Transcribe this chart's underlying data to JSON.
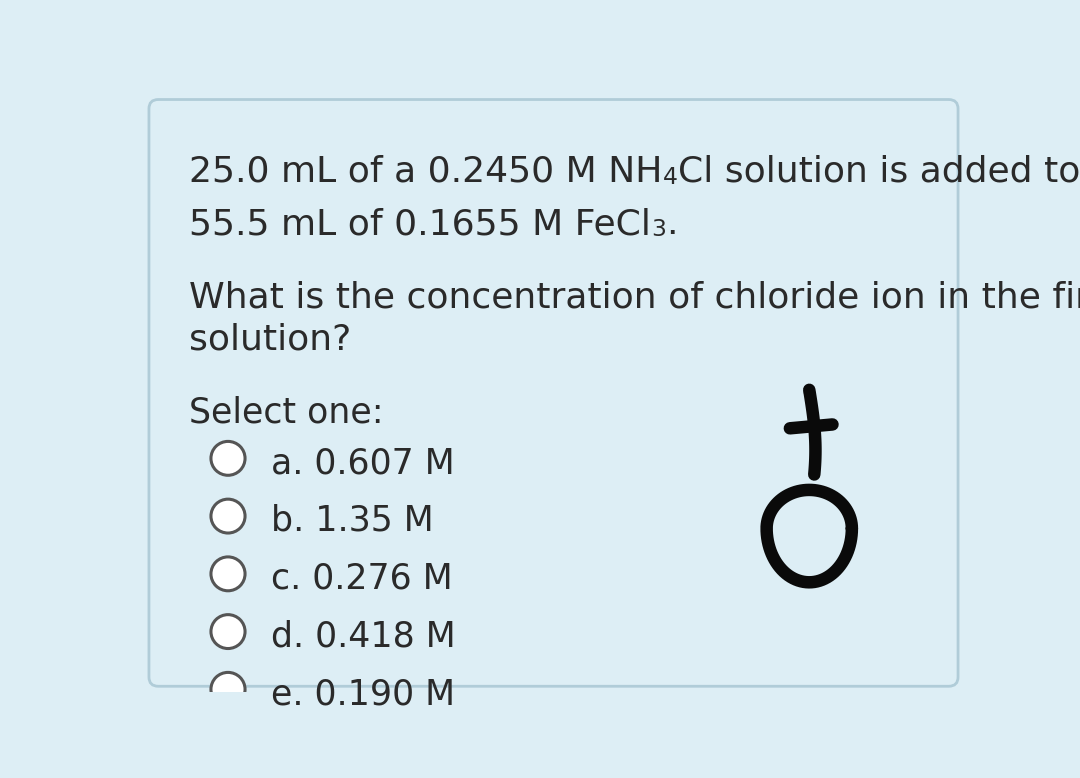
{
  "background_color": "#ddeef5",
  "border_color": "#b0ccd8",
  "text_color": "#2a2a2a",
  "select_label": "Select one:",
  "options": [
    "a. 0.607 M",
    "b. 1.35 M",
    "c. 0.276 M",
    "d. 0.418 M",
    "e. 0.190 M"
  ],
  "font_size_main": 26,
  "font_size_options": 25,
  "font_size_select": 25,
  "annotation_color": "#0a0a0a",
  "figwidth": 10.8,
  "figheight": 7.78
}
